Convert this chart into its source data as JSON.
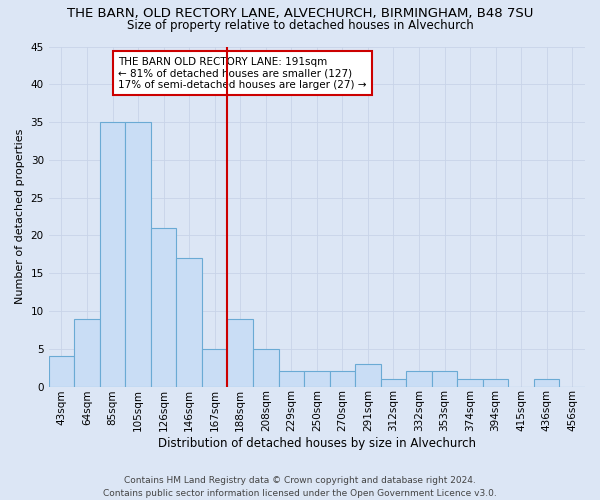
{
  "title1": "THE BARN, OLD RECTORY LANE, ALVECHURCH, BIRMINGHAM, B48 7SU",
  "title2": "Size of property relative to detached houses in Alvechurch",
  "xlabel": "Distribution of detached houses by size in Alvechurch",
  "ylabel": "Number of detached properties",
  "footer": "Contains HM Land Registry data © Crown copyright and database right 2024.\nContains public sector information licensed under the Open Government Licence v3.0.",
  "bar_labels": [
    "43sqm",
    "64sqm",
    "85sqm",
    "105sqm",
    "126sqm",
    "146sqm",
    "167sqm",
    "188sqm",
    "208sqm",
    "229sqm",
    "250sqm",
    "270sqm",
    "291sqm",
    "312sqm",
    "332sqm",
    "353sqm",
    "374sqm",
    "394sqm",
    "415sqm",
    "436sqm",
    "456sqm"
  ],
  "bar_values": [
    4,
    9,
    35,
    35,
    21,
    17,
    5,
    9,
    5,
    2,
    2,
    2,
    3,
    1,
    2,
    2,
    1,
    1,
    0,
    1,
    0
  ],
  "bar_color": "#c9ddf5",
  "bar_edge_color": "#6aaad4",
  "annotation_line_color": "#cc0000",
  "annotation_box_edge_color": "#cc0000",
  "annotation_box_text": "THE BARN OLD RECTORY LANE: 191sqm\n← 81% of detached houses are smaller (127)\n17% of semi-detached houses are larger (27) →",
  "grid_color": "#c8d4e8",
  "bg_color": "#dce6f5",
  "ylim": [
    0,
    45
  ],
  "yticks": [
    0,
    5,
    10,
    15,
    20,
    25,
    30,
    35,
    40,
    45
  ],
  "title1_fontsize": 9.5,
  "title2_fontsize": 8.5,
  "xlabel_fontsize": 8.5,
  "ylabel_fontsize": 8,
  "tick_fontsize": 7.5,
  "footer_fontsize": 6.5,
  "annot_fontsize": 7.5
}
